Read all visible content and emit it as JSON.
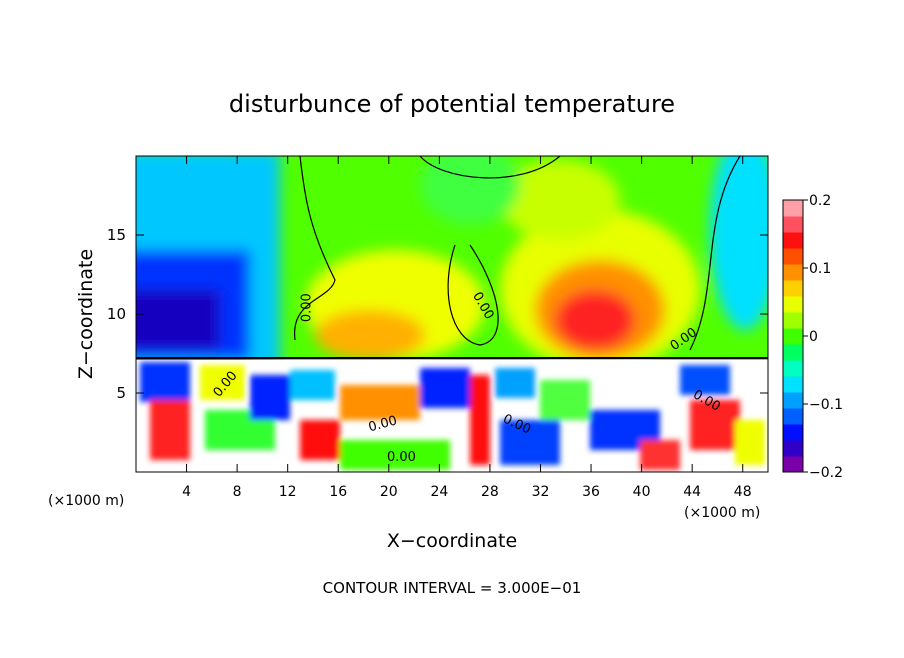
{
  "chart_data": {
    "type": "heatmap",
    "title": "disturbunce of potential temperature",
    "xlabel": "X−coordinate",
    "ylabel": "Z−coordinate",
    "x_unit_left": "(×1000 m)",
    "x_unit_right": "(×1000 m)",
    "footer": "CONTOUR INTERVAL = 3.000E−01",
    "xlim": [
      0,
      50
    ],
    "ylim": [
      0,
      20
    ],
    "x_ticks": [
      4,
      8,
      12,
      16,
      20,
      24,
      28,
      32,
      36,
      40,
      44,
      48
    ],
    "y_ticks": [
      5,
      10,
      15
    ],
    "colorbar": {
      "min": -0.2,
      "max": 0.2,
      "ticks": [
        {
          "value": 0.2,
          "label": "0.2"
        },
        {
          "value": 0.1,
          "label": "0.1"
        },
        {
          "value": 0,
          "label": "0"
        },
        {
          "value": -0.1,
          "label": "−0.1"
        },
        {
          "value": -0.2,
          "label": "−0.2"
        }
      ],
      "colors": [
        "#7a00a8",
        "#3000c8",
        "#0010ff",
        "#0060ff",
        "#00a0ff",
        "#00e0ff",
        "#00ffc0",
        "#00ff60",
        "#40ff00",
        "#a0ff00",
        "#e8ff00",
        "#ffd000",
        "#ff9000",
        "#ff5000",
        "#ff1010",
        "#ff5060",
        "#ffa0a8"
      ]
    },
    "contour_labels": [
      {
        "text": "0.00",
        "x": 13.8,
        "y": 10.4,
        "rotate": -90
      },
      {
        "text": "0.00",
        "x": 27.2,
        "y": 10.4,
        "rotate": 60
      },
      {
        "text": "0.00",
        "x": 43.5,
        "y": 8.2,
        "rotate": -35
      },
      {
        "text": "0.00",
        "x": 7.3,
        "y": 5.4,
        "rotate": -50
      },
      {
        "text": "0.00",
        "x": 19.6,
        "y": 2.8,
        "rotate": -15
      },
      {
        "text": "0.00",
        "x": 30.0,
        "y": 2.8,
        "rotate": 25
      },
      {
        "text": "0.00",
        "x": 45.0,
        "y": 4.3,
        "rotate": 30
      },
      {
        "text": "0.00",
        "x": 21.0,
        "y": 0.7,
        "rotate": 0
      }
    ]
  }
}
